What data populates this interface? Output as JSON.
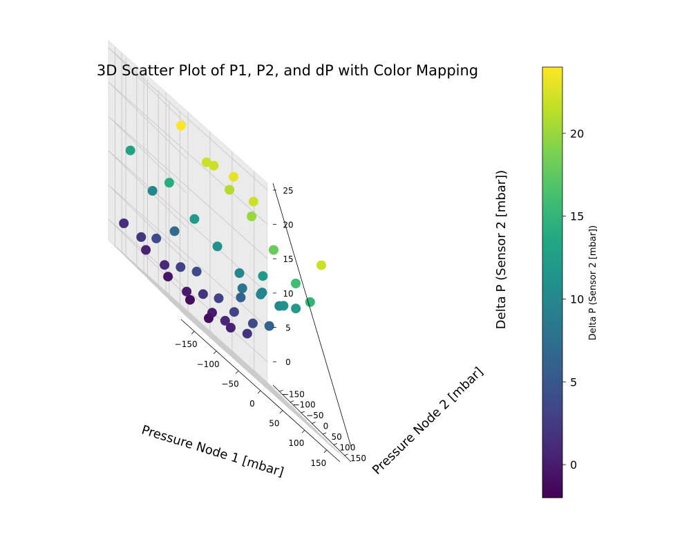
{
  "chart_data": {
    "type": "scatter",
    "projection": "3d",
    "title": "3D Scatter Plot of P1, P2, and dP with Color Mapping",
    "xlabel": "Pressure Node 1 [mbar]",
    "ylabel": "Pressure Node 2 [mbar]",
    "zlabel": "Delta P (Sensor 2 [mbar])",
    "xlim": [
      -180,
      180
    ],
    "ylim": [
      -180,
      180
    ],
    "zlim": [
      -3,
      26
    ],
    "xticks": [
      "−150",
      "−100",
      "−50",
      "0",
      "50",
      "100",
      "150"
    ],
    "yticks": [
      "−150",
      "−100",
      "−50",
      "0",
      "50",
      "100",
      "150"
    ],
    "zticks": [
      "0",
      "5",
      "10",
      "15",
      "20",
      "25"
    ],
    "grid": true,
    "colormap": "viridis",
    "colorbar": {
      "label": "Delta P (Sensor 2 [mbar])",
      "range": [
        -2,
        24
      ],
      "ticks": [
        "0",
        "5",
        "10",
        "15",
        "20"
      ]
    },
    "series": [
      {
        "points": [
          [
            -160,
            -150,
            1.5
          ],
          [
            -165,
            -60,
            2
          ],
          [
            -170,
            20,
            4
          ],
          [
            -175,
            90,
            14
          ],
          [
            -178,
            150,
            24
          ],
          [
            -110,
            -150,
            0.5
          ],
          [
            -112,
            -60,
            1
          ],
          [
            -115,
            20,
            3
          ],
          [
            -118,
            90,
            12
          ],
          [
            -120,
            150,
            22
          ],
          [
            -60,
            -150,
            -0.5
          ],
          [
            -62,
            -60,
            0
          ],
          [
            -64,
            20,
            2
          ],
          [
            -66,
            90,
            11
          ],
          [
            -68,
            150,
            21
          ],
          [
            -10,
            -150,
            -1
          ],
          [
            -12,
            -60,
            -1
          ],
          [
            -14,
            20,
            1
          ],
          [
            -16,
            90,
            10
          ],
          [
            -18,
            150,
            20
          ],
          [
            40,
            -150,
            0
          ],
          [
            38,
            -60,
            0.5
          ],
          [
            36,
            20,
            2
          ],
          [
            34,
            90,
            10
          ],
          [
            32,
            150,
            18
          ],
          [
            90,
            -150,
            3
          ],
          [
            88,
            -60,
            4
          ],
          [
            86,
            20,
            6
          ],
          [
            84,
            90,
            11
          ],
          [
            82,
            150,
            16
          ],
          [
            150,
            -150,
            9
          ],
          [
            148,
            -60,
            10
          ],
          [
            146,
            20,
            12
          ],
          [
            144,
            90,
            15
          ],
          [
            140,
            150,
            22
          ],
          [
            -150,
            -140,
            13
          ],
          [
            -100,
            -140,
            10
          ],
          [
            -50,
            -140,
            7
          ],
          [
            0,
            -140,
            4
          ],
          [
            50,
            -140,
            3
          ],
          [
            100,
            -140,
            6
          ],
          [
            150,
            -140,
            12
          ],
          [
            -20,
            -20,
            22
          ],
          [
            20,
            -10,
            23
          ],
          [
            60,
            0,
            22
          ],
          [
            20,
            30,
            8
          ],
          [
            60,
            40,
            10
          ]
        ]
      }
    ]
  }
}
